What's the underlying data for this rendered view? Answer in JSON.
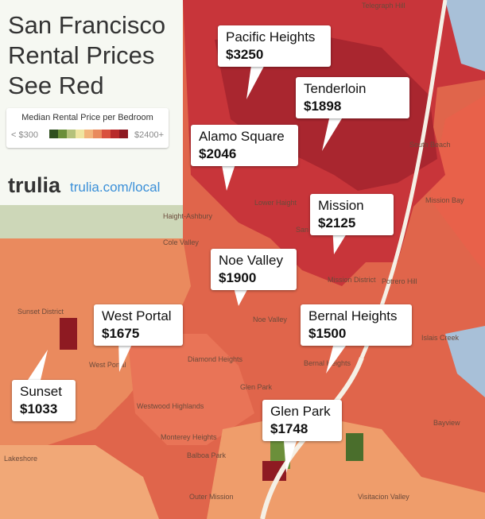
{
  "header": {
    "title": [
      "San Francisco",
      "Rental Prices",
      "See Red"
    ]
  },
  "legend": {
    "label": "Median Rental Price per Bedroom",
    "low": "< $300",
    "high": "$2400+",
    "colors": [
      "#2f4f1f",
      "#6b8f3a",
      "#b5c27a",
      "#efe5a0",
      "#f2b47a",
      "#e98a5c",
      "#d9513d",
      "#b82a2a",
      "#8e1a22"
    ]
  },
  "brand": {
    "logo": "trulia",
    "url": "trulia.com/local"
  },
  "callouts": [
    {
      "name": "Pacific Heights",
      "price": "$3250"
    },
    {
      "name": "Tenderloin",
      "price": "$1898"
    },
    {
      "name": "Alamo Square",
      "price": "$2046"
    },
    {
      "name": "Mission",
      "price": "$2125"
    },
    {
      "name": "Noe Valley",
      "price": "$1900"
    },
    {
      "name": "West Portal",
      "price": "$1675"
    },
    {
      "name": "Bernal Heights",
      "price": "$1500"
    },
    {
      "name": "Sunset",
      "price": "$1033"
    },
    {
      "name": "Glen Park",
      "price": "$1748"
    }
  ],
  "map_labels": [
    "Haight-Ashbury",
    "Cole Valley",
    "Lower Haight",
    "San Francisco",
    "Mission District",
    "Potrero Hill",
    "Noe Valley",
    "Diamond Heights",
    "Sunset District",
    "West Portal",
    "Westwood Highlands",
    "Monterey Heights",
    "Glen Park",
    "Balboa Park",
    "Bernal Heights",
    "Bayview",
    "Lakeshore",
    "Outer Mission",
    "Visitacion Valley",
    "South Beach",
    "Mission Bay",
    "Telegraph Hill",
    "Islais Creek"
  ]
}
